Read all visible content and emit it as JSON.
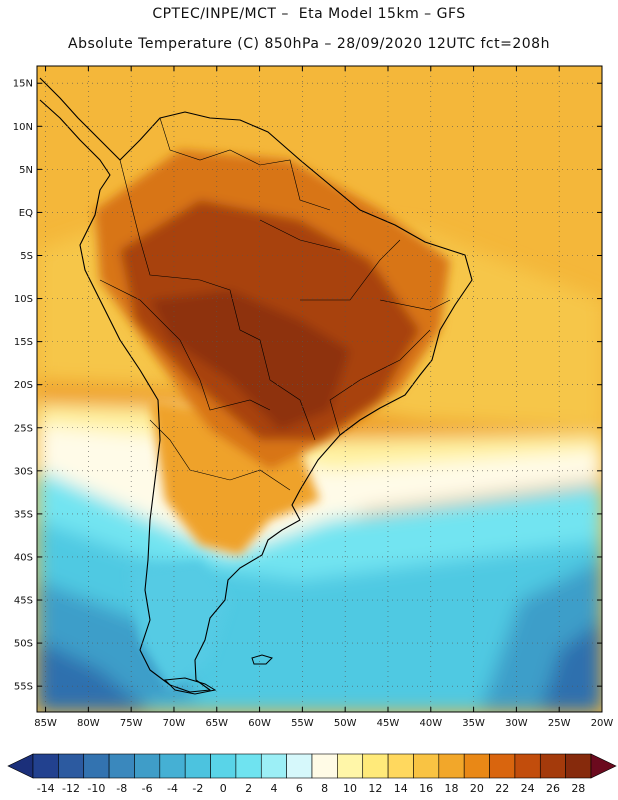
{
  "title": {
    "line1": "CPTEC/INPE/MCT –  Eta Model 15km – GFS",
    "line2": "Absolute Temperature (C) 850hPa – 28/09/2020 12UTC fct=208h"
  },
  "map": {
    "lon_range": [
      -86,
      -20
    ],
    "lat_range": [
      -58,
      17
    ],
    "lat_ticks": [
      {
        "value": 15,
        "label": "15N"
      },
      {
        "value": 10,
        "label": "10N"
      },
      {
        "value": 5,
        "label": "5N"
      },
      {
        "value": 0,
        "label": "EQ"
      },
      {
        "value": -5,
        "label": "5S"
      },
      {
        "value": -10,
        "label": "10S"
      },
      {
        "value": -15,
        "label": "15S"
      },
      {
        "value": -20,
        "label": "20S"
      },
      {
        "value": -25,
        "label": "25S"
      },
      {
        "value": -30,
        "label": "30S"
      },
      {
        "value": -35,
        "label": "35S"
      },
      {
        "value": -40,
        "label": "40S"
      },
      {
        "value": -45,
        "label": "45S"
      },
      {
        "value": -50,
        "label": "50S"
      },
      {
        "value": -55,
        "label": "55S"
      }
    ],
    "lon_ticks": [
      {
        "value": -85,
        "label": "85W"
      },
      {
        "value": -80,
        "label": "80W"
      },
      {
        "value": -75,
        "label": "75W"
      },
      {
        "value": -70,
        "label": "70W"
      },
      {
        "value": -65,
        "label": "65W"
      },
      {
        "value": -60,
        "label": "60W"
      },
      {
        "value": -55,
        "label": "55W"
      },
      {
        "value": -50,
        "label": "50W"
      },
      {
        "value": -45,
        "label": "45W"
      },
      {
        "value": -40,
        "label": "40W"
      },
      {
        "value": -35,
        "label": "35W"
      },
      {
        "value": -30,
        "label": "30W"
      },
      {
        "value": -25,
        "label": "25W"
      },
      {
        "value": -20,
        "label": "20W"
      }
    ]
  },
  "colorbar": {
    "labels": [
      "-14",
      "-12",
      "-10",
      "-8",
      "-6",
      "-4",
      "-2",
      "0",
      "2",
      "4",
      "6",
      "8",
      "10",
      "12",
      "14",
      "16",
      "18",
      "20",
      "22",
      "24",
      "26",
      "28"
    ],
    "under_color": "#1b2f7a",
    "over_color": "#6b0a1e",
    "colors": [
      "#22418f",
      "#2c5aa0",
      "#3373b0",
      "#3a88bd",
      "#3f9dc8",
      "#45b0d4",
      "#4cc3df",
      "#59d4e8",
      "#6fe3f0",
      "#9ceff6",
      "#d6f8fb",
      "#fffbe6",
      "#fff6a8",
      "#ffea7a",
      "#ffd85e",
      "#f9c343",
      "#f2a72a",
      "#e98816",
      "#d9650e",
      "#c24d0c",
      "#a43a0b",
      "#862a0c"
    ]
  },
  "field_colors": {
    "ocean_north": "#f4b73a",
    "ocean_mid": "#f6c64a",
    "amazon": "#d87518",
    "core_hot": "#a8420c",
    "hottest": "#8e330b",
    "south_warm": "#efa22a",
    "yellow_band": "#fff2a0",
    "pale_band": "#fffbe8",
    "cyan_light": "#72e4f1",
    "cyan_mid": "#4fc9e2",
    "blue_mid": "#3d9ec9",
    "blue_deep": "#2e6fae",
    "patagonia": "#55cbe4",
    "coast": "#000000"
  }
}
